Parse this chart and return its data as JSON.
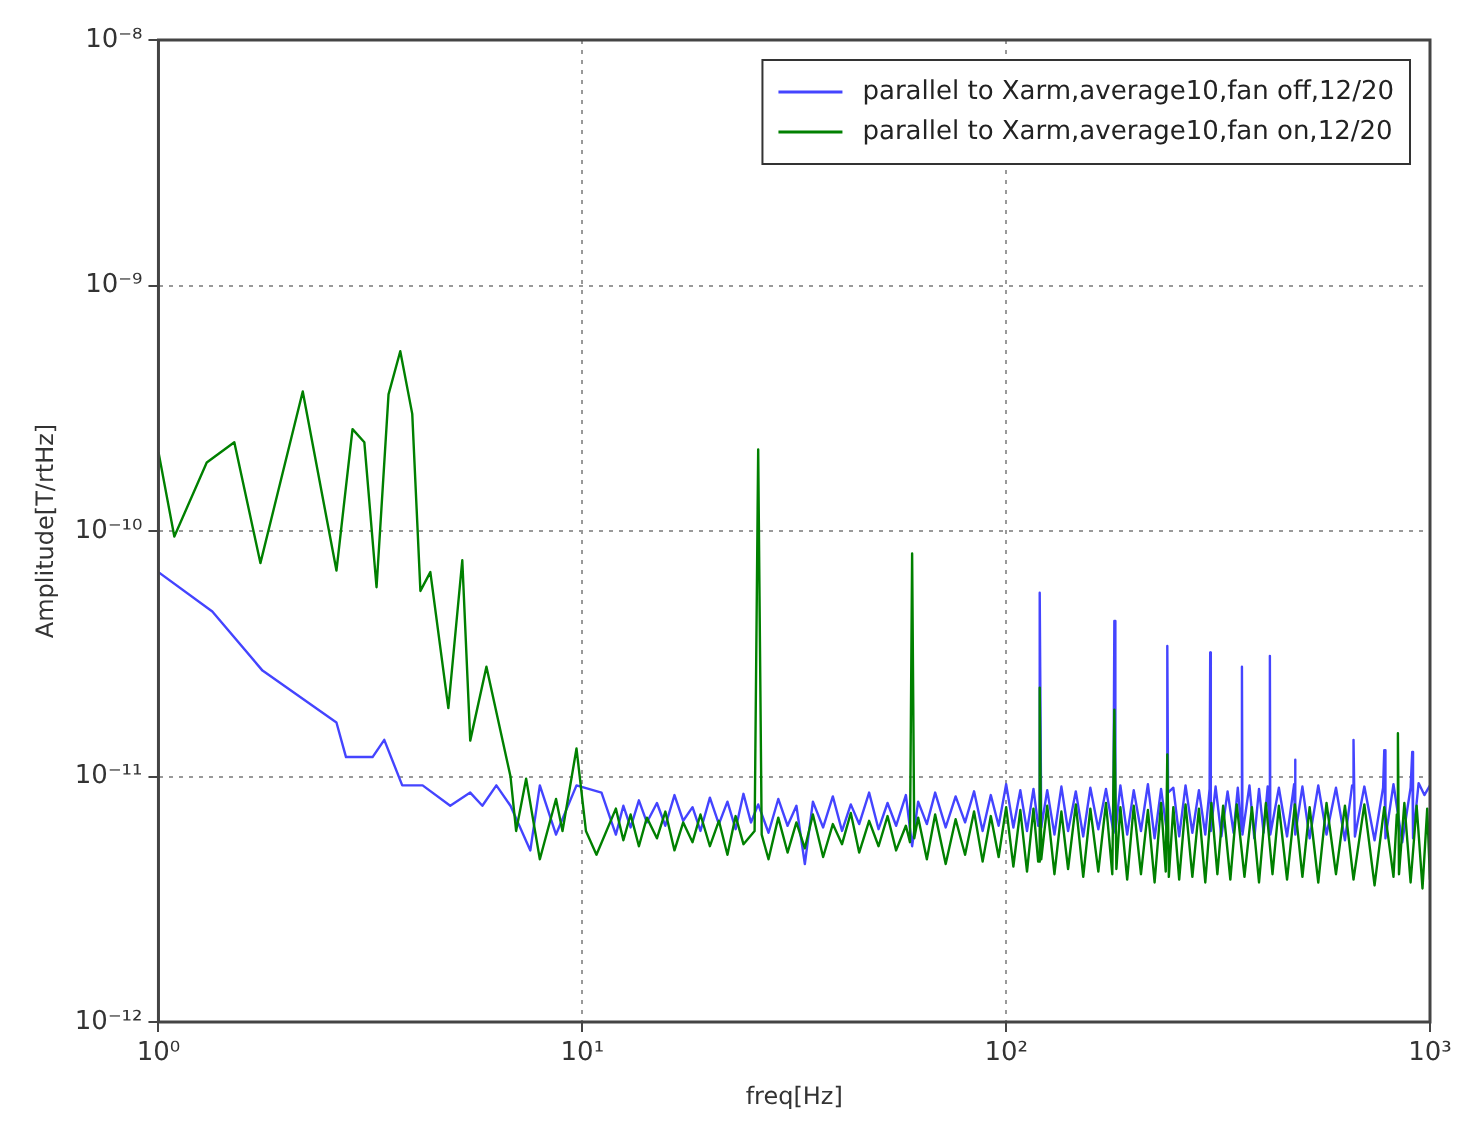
{
  "chart_data": {
    "type": "line",
    "xlabel": "freq[Hz]",
    "ylabel": "Amplitude[T/rtHz]",
    "log": "xy",
    "grid": true,
    "legend": "top right",
    "xlim": [
      1,
      1000
    ],
    "ylim": [
      1e-12,
      1e-08
    ],
    "xticks": [
      {
        "value": 1,
        "label": "10⁰"
      },
      {
        "value": 10,
        "label": "10¹"
      },
      {
        "value": 100,
        "label": "10²"
      },
      {
        "value": 1000,
        "label": "10³"
      }
    ],
    "yticks": [
      {
        "value": 1e-12,
        "label": "10⁻¹²"
      },
      {
        "value": 1e-11,
        "label": "10⁻¹¹"
      },
      {
        "value": 1e-10,
        "label": "10⁻¹⁰"
      },
      {
        "value": 1e-09,
        "label": "10⁻⁹"
      },
      {
        "value": 1e-08,
        "label": "10⁻⁸"
      }
    ],
    "series": [
      {
        "name": "parallel to Xarm,average10,fan off,12/20",
        "color": "#4444ff",
        "x": [
          1,
          1.34,
          1.76,
          2.63,
          2.77,
          3.2,
          3.41,
          3.76,
          4.2,
          4.88,
          5.44,
          5.81,
          6.27,
          6.77,
          7.54,
          7.94,
          8.67,
          9.69,
          11.1,
          12,
          12.5,
          13,
          13.6,
          14.2,
          15,
          15.7,
          16.5,
          17.3,
          18.2,
          19,
          20,
          21,
          22,
          23,
          24,
          25,
          26,
          27.5,
          29,
          30.5,
          32,
          33.5,
          35,
          37,
          39,
          41,
          43,
          45,
          47.5,
          50,
          52.5,
          55,
          58,
          60,
          62,
          65,
          68,
          72,
          76,
          80,
          84,
          88,
          92,
          96,
          100,
          104,
          108,
          112,
          116,
          119,
          120,
          121,
          125,
          130,
          135,
          140,
          146,
          152,
          158,
          165,
          172,
          179,
          180,
          181,
          186,
          193,
          200,
          208,
          216,
          224,
          232,
          239,
          240,
          241,
          248,
          256,
          265,
          275,
          285,
          295,
          302,
          303,
          304,
          312,
          322,
          333,
          344,
          352,
          359,
          360,
          361,
          375,
          385,
          395,
          405,
          414,
          418,
          419,
          420,
          440,
          460,
          478,
          480,
          482,
          500,
          520,
          545,
          570,
          600,
          630,
          655,
          660,
          665,
          700,
          740,
          775,
          780,
          785,
          820,
          860,
          900,
          908,
          912,
          940,
          970,
          1000
        ],
        "values": [
          6.8e-11,
          4.7e-11,
          2.7e-11,
          1.66e-11,
          1.2e-11,
          1.2e-11,
          1.41e-11,
          9.2e-12,
          9.2e-12,
          7.6e-12,
          8.6e-12,
          7.6e-12,
          9.2e-12,
          7.6e-12,
          5e-12,
          9.2e-12,
          5.8e-12,
          9.2e-12,
          8.6e-12,
          5.8e-12,
          7.6e-12,
          6.2e-12,
          8e-12,
          6.5e-12,
          7.8e-12,
          6.3e-12,
          8.4e-12,
          6.6e-12,
          7.5e-12,
          6e-12,
          8.2e-12,
          6.4e-12,
          7.9e-12,
          6.1e-12,
          8.5e-12,
          6.5e-12,
          7.7e-12,
          5.9e-12,
          8.1e-12,
          6.3e-12,
          7.6e-12,
          4.4e-12,
          7.9e-12,
          6.2e-12,
          8.3e-12,
          6e-12,
          7.7e-12,
          6.4e-12,
          8.6e-12,
          6.1e-12,
          7.8e-12,
          6.3e-12,
          8.4e-12,
          5.2e-12,
          7.9e-12,
          6.4e-12,
          8.6e-12,
          6.2e-12,
          8.3e-12,
          6.5e-12,
          8.7e-12,
          6e-12,
          8.4e-12,
          6.3e-12,
          9.3e-12,
          6.2e-12,
          8.8e-12,
          6e-12,
          8.9e-12,
          6.3e-12,
          5.6e-11,
          6.2e-12,
          8.8e-12,
          5.8e-12,
          9.1e-12,
          6e-12,
          8.7e-12,
          5.7e-12,
          9e-12,
          6.1e-12,
          8.9e-12,
          6e-12,
          4.3e-11,
          5.9e-12,
          9.2e-12,
          5.8e-12,
          8.8e-12,
          6e-12,
          9.3e-12,
          5.6e-12,
          8.9e-12,
          6.1e-12,
          3.4e-11,
          8.6e-12,
          9e-12,
          5.7e-12,
          9.2e-12,
          5.9e-12,
          8.8e-12,
          5.8e-12,
          8.9e-12,
          3.2e-11,
          6e-12,
          9.1e-12,
          5.7e-12,
          8.7e-12,
          5.9e-12,
          9e-12,
          6e-12,
          2.8e-11,
          5.8e-12,
          9.2e-12,
          5.6e-12,
          8.9e-12,
          5.9e-12,
          9.1e-12,
          6e-12,
          3.1e-11,
          5.8e-12,
          9e-12,
          5.7e-12,
          9.3e-12,
          1.17e-11,
          5.8e-12,
          9.1e-12,
          5.6e-12,
          9.2e-12,
          5.8e-12,
          9e-12,
          5.5e-12,
          9.2e-12,
          1.41e-11,
          5.7e-12,
          9.1e-12,
          5.5e-12,
          9e-12,
          1.28e-11,
          5.6e-12,
          9.3e-12,
          5.4e-12,
          9e-12,
          1.26e-11,
          5.6e-12,
          9.4e-12,
          8.4e-12,
          9.2e-12
        ]
      },
      {
        "name": "parallel to Xarm,average10,fan on,12/20",
        "color": "#008000",
        "x": [
          1,
          1.09,
          1.3,
          1.51,
          1.74,
          2.19,
          2.63,
          2.87,
          3.06,
          3.27,
          3.49,
          3.72,
          3.97,
          4.15,
          4.38,
          4.83,
          5.21,
          5.44,
          5.94,
          6.77,
          6.98,
          7.37,
          7.94,
          8.67,
          8.98,
          9.69,
          10.2,
          10.8,
          12,
          12.5,
          13,
          13.6,
          14.2,
          15,
          15.7,
          16.5,
          17.3,
          18.2,
          19,
          20,
          21,
          22,
          23,
          24,
          25.5,
          26,
          26.5,
          27.5,
          29,
          30.5,
          32,
          33.5,
          35,
          37,
          39,
          41,
          43,
          45,
          47.5,
          50,
          52.5,
          55,
          58,
          59.3,
          60,
          60.7,
          62,
          65,
          68,
          72,
          76,
          80,
          84,
          88,
          92,
          96,
          100,
          104,
          108,
          112,
          116,
          119,
          120,
          121,
          125,
          130,
          135,
          140,
          146,
          152,
          158,
          165,
          172,
          178,
          180,
          182,
          186,
          193,
          200,
          208,
          216,
          224,
          232,
          238,
          240,
          242,
          248,
          256,
          265,
          275,
          285,
          295,
          305,
          315,
          325,
          338,
          350,
          365,
          380,
          395,
          410,
          425,
          440,
          460,
          480,
          500,
          520,
          545,
          570,
          600,
          630,
          660,
          700,
          740,
          780,
          820,
          835,
          840,
          845,
          870,
          900,
          930,
          960,
          985,
          1000
        ],
        "values": [
          2.1e-10,
          9.5e-11,
          1.9e-10,
          2.3e-10,
          7.4e-11,
          3.7e-10,
          6.9e-11,
          2.6e-10,
          2.3e-10,
          5.9e-11,
          3.6e-10,
          5.4e-10,
          3e-10,
          5.7e-11,
          6.8e-11,
          1.9e-11,
          7.6e-11,
          1.4e-11,
          2.8e-11,
          1e-11,
          6e-12,
          9.8e-12,
          4.6e-12,
          8.1e-12,
          6e-12,
          1.3e-11,
          6e-12,
          4.8e-12,
          7.4e-12,
          5.5e-12,
          7e-12,
          5.2e-12,
          6.8e-12,
          5.6e-12,
          7.2e-12,
          5e-12,
          6.5e-12,
          5.4e-12,
          7e-12,
          5.2e-12,
          6.6e-12,
          4.8e-12,
          6.9e-12,
          5.3e-12,
          6e-12,
          2.15e-10,
          5.8e-12,
          4.6e-12,
          6.8e-12,
          4.9e-12,
          6.5e-12,
          5.1e-12,
          7e-12,
          4.7e-12,
          6.4e-12,
          5.3e-12,
          7.1e-12,
          4.9e-12,
          6.6e-12,
          5.2e-12,
          6.9e-12,
          5e-12,
          6.3e-12,
          5.4e-12,
          8.1e-11,
          5.6e-12,
          6.8e-12,
          4.6e-12,
          7e-12,
          4.4e-12,
          6.7e-12,
          4.8e-12,
          7.2e-12,
          4.5e-12,
          6.9e-12,
          4.7e-12,
          7.5e-12,
          4.3e-12,
          7.3e-12,
          4.1e-12,
          7.4e-12,
          4.5e-12,
          2.3e-11,
          4.6e-12,
          7.6e-12,
          4e-12,
          7.2e-12,
          4.2e-12,
          7.7e-12,
          3.9e-12,
          7.4e-12,
          4.1e-12,
          7.8e-12,
          4e-12,
          1.87e-11,
          4.2e-12,
          7.5e-12,
          3.8e-12,
          7.6e-12,
          4e-12,
          7.3e-12,
          3.7e-12,
          7.8e-12,
          4.1e-12,
          1.23e-11,
          3.9e-12,
          7.5e-12,
          3.8e-12,
          7.7e-12,
          3.9e-12,
          7.4e-12,
          3.7e-12,
          7.8e-12,
          4e-12,
          7.6e-12,
          3.8e-12,
          7.7e-12,
          3.9e-12,
          7.5e-12,
          3.7e-12,
          7.8e-12,
          4e-12,
          7.6e-12,
          3.8e-12,
          7.7e-12,
          3.9e-12,
          7.5e-12,
          3.7e-12,
          7.8e-12,
          4e-12,
          7.6e-12,
          3.8e-12,
          7.7e-12,
          3.6e-12,
          7.5e-12,
          3.9e-12,
          7e-12,
          1.5e-11,
          4e-12,
          7.8e-12,
          3.7e-12,
          7.6e-12,
          3.5e-12,
          7.4e-12,
          3.8e-12
        ]
      }
    ]
  }
}
